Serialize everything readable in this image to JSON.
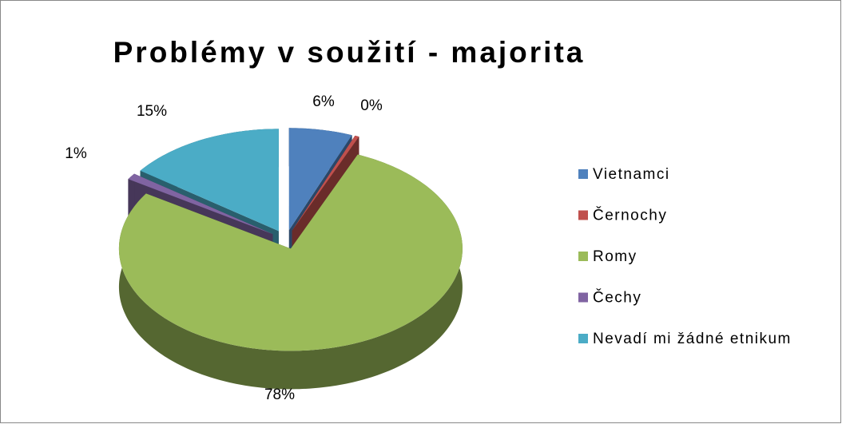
{
  "chart_data": {
    "type": "pie",
    "title": "Problémy v soužití - majorita",
    "categories": [
      "Vietnamci",
      "Černochy",
      "Romy",
      "Čechy",
      "Nevadí mi žádné etnikum"
    ],
    "values": [
      6,
      0.4,
      78,
      1,
      15
    ],
    "value_labels": [
      "6%",
      "0%",
      "78%",
      "1%",
      "15%"
    ],
    "colors": [
      "#4f81bd",
      "#c0504d",
      "#9bbb59",
      "#8064a2",
      "#4bacc6"
    ],
    "legend": "right"
  }
}
